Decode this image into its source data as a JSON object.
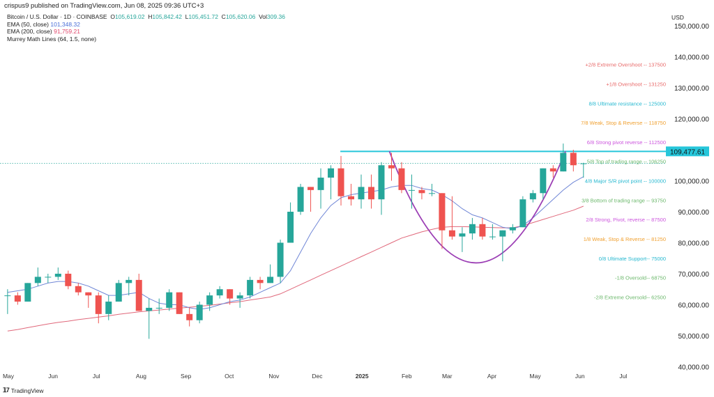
{
  "header": {
    "published": "crispus9 published on TradingView.com, Jun 08, 2025 09:36 UTC+3",
    "symbol": "Bitcoin / U.S. Dollar · 1D · COINBASE",
    "o_label": "O",
    "o": "105,619.02",
    "h_label": "H",
    "h": "105,842.42",
    "l_label": "L",
    "l": "105,451.72",
    "c_label": "C",
    "c": "105,620.06",
    "vol_label": "Vol",
    "vol": "309.36",
    "ema50_label": "EMA (50, close)",
    "ema50": "101,348.32",
    "ema200_label": "EMA (200, close)",
    "ema200": "91,759.21",
    "murrey_label": "Murrey Math Lines (64, 1.5, none)"
  },
  "footer": {
    "logo_text": "TradingView",
    "logo_mark": "17"
  },
  "colors": {
    "up": "#26a69a",
    "down": "#ef5350",
    "ema50": "#6f86d6",
    "ema200": "#e0677a",
    "resistance": "#26c6da",
    "cup": "#9c3fb5"
  },
  "chart_data": {
    "type": "candlestick",
    "currency": "USD",
    "y_unit_label": "USD",
    "ylim": [
      40000,
      150000
    ],
    "y_ticks": [
      "150,000.00",
      "140,000.00",
      "130,000.00",
      "120,000.00",
      "100,000.00",
      "90,000.00",
      "80,000.00",
      "70,000.00",
      "60,000.00",
      "50,000.00",
      "40,000.00"
    ],
    "y_tick_values": [
      150000,
      140000,
      130000,
      120000,
      100000,
      90000,
      80000,
      70000,
      60000,
      50000,
      40000
    ],
    "x_ticks": [
      {
        "label": "May",
        "date": "2024-05-01"
      },
      {
        "label": "Jun",
        "date": "2024-06-01"
      },
      {
        "label": "Jul",
        "date": "2024-07-01"
      },
      {
        "label": "Aug",
        "date": "2024-08-01"
      },
      {
        "label": "Sep",
        "date": "2024-09-01"
      },
      {
        "label": "Oct",
        "date": "2024-10-01"
      },
      {
        "label": "Nov",
        "date": "2024-11-01"
      },
      {
        "label": "Dec",
        "date": "2024-12-01"
      },
      {
        "label": "2025",
        "date": "2025-01-01",
        "bold": true
      },
      {
        "label": "Feb",
        "date": "2025-02-01"
      },
      {
        "label": "Mar",
        "date": "2025-03-01"
      },
      {
        "label": "Apr",
        "date": "2025-04-01"
      },
      {
        "label": "May",
        "date": "2025-05-01"
      },
      {
        "label": "Jun",
        "date": "2025-06-01"
      },
      {
        "label": "Jul",
        "date": "2025-07-01"
      }
    ],
    "x_range": [
      "2024-04-27",
      "2025-07-25"
    ],
    "candle_dates_start": "2024-04-29",
    "candle_interval_days": 7,
    "ohlc_thousands": [
      [
        63,
        65,
        57,
        63
      ],
      [
        63,
        64,
        60,
        61
      ],
      [
        61,
        67,
        61,
        67
      ],
      [
        67,
        72,
        66,
        69
      ],
      [
        69,
        70,
        67,
        69
      ],
      [
        69,
        72,
        68,
        70
      ],
      [
        70,
        71,
        65,
        66
      ],
      [
        66,
        67,
        63,
        64
      ],
      [
        64,
        64,
        59,
        63
      ],
      [
        63,
        64,
        54,
        57
      ],
      [
        57,
        63,
        55,
        61
      ],
      [
        61,
        68,
        61,
        67
      ],
      [
        67,
        69,
        63,
        68
      ],
      [
        68,
        70,
        58,
        58
      ],
      [
        58,
        62,
        49,
        59
      ],
      [
        59,
        62,
        57,
        59
      ],
      [
        59,
        65,
        58,
        64
      ],
      [
        64,
        64,
        57,
        57
      ],
      [
        57,
        59,
        53,
        55
      ],
      [
        55,
        61,
        54,
        60
      ],
      [
        60,
        64,
        58,
        63
      ],
      [
        63,
        66,
        62,
        65
      ],
      [
        65,
        65,
        60,
        62
      ],
      [
        62,
        64,
        59,
        63
      ],
      [
        63,
        69,
        62,
        68
      ],
      [
        68,
        69,
        65,
        67
      ],
      [
        67,
        73,
        67,
        69
      ],
      [
        69,
        81,
        67,
        80
      ],
      [
        80,
        93,
        80,
        90
      ],
      [
        90,
        99,
        89,
        98
      ],
      [
        98,
        98,
        90,
        97
      ],
      [
        97,
        104,
        91,
        101
      ],
      [
        101,
        105,
        94,
        104
      ],
      [
        104,
        108,
        92,
        95
      ],
      [
        95,
        99,
        92,
        94
      ],
      [
        94,
        102,
        91,
        98
      ],
      [
        98,
        102,
        91,
        94
      ],
      [
        94,
        106,
        89,
        105
      ],
      [
        105,
        109,
        100,
        104
      ],
      [
        104,
        106,
        96,
        97
      ],
      [
        97,
        102,
        91,
        97
      ],
      [
        97,
        98,
        94,
        96
      ],
      [
        96,
        99,
        95,
        96
      ],
      [
        96,
        96,
        78,
        84
      ],
      [
        84,
        95,
        81,
        82
      ],
      [
        82,
        85,
        77,
        83
      ],
      [
        83,
        88,
        81,
        86
      ],
      [
        86,
        88,
        81,
        82
      ],
      [
        82,
        86,
        81,
        82
      ],
      [
        82,
        84,
        74,
        84
      ],
      [
        84,
        86,
        83,
        85
      ],
      [
        85,
        95,
        85,
        94
      ],
      [
        94,
        97,
        93,
        96
      ],
      [
        96,
        104,
        94,
        104
      ],
      [
        104,
        105,
        101,
        103
      ],
      [
        103,
        112,
        103,
        109
      ],
      [
        109,
        110,
        103,
        105
      ],
      [
        105.6,
        105.8,
        101,
        105.6
      ]
    ],
    "ema50_thousands": [
      64,
      64.5,
      65,
      66,
      67,
      67.5,
      67.5,
      67,
      66,
      64.5,
      63,
      63,
      63.5,
      64,
      62,
      60.5,
      60,
      60,
      59,
      58.5,
      59,
      60,
      61,
      61.5,
      62.5,
      64,
      65.5,
      67,
      71,
      77,
      83,
      88,
      92,
      94.5,
      95.5,
      96,
      96.5,
      97,
      98,
      98.5,
      98.5,
      97.5,
      97,
      95.5,
      93.5,
      91,
      89,
      88,
      86.5,
      85,
      84.5,
      85.5,
      88,
      91,
      94,
      97,
      99.5,
      101.3
    ],
    "ema200_thousands": [
      51.5,
      52,
      52.6,
      53.2,
      53.8,
      54.3,
      54.7,
      55.2,
      55.6,
      56,
      56.4,
      56.9,
      57.3,
      57.7,
      58,
      58.3,
      58.6,
      58.9,
      59.2,
      59.5,
      59.8,
      60.2,
      60.6,
      61,
      61.5,
      62,
      62.5,
      63.5,
      65,
      66.5,
      68,
      69.5,
      71,
      72.5,
      74,
      75.5,
      77,
      78.5,
      80,
      81.5,
      82.5,
      83.5,
      84.3,
      85,
      85.2,
      85.2,
      85.1,
      85,
      84.9,
      84.8,
      84.8,
      85.5,
      86.5,
      87.5,
      88.5,
      89.5,
      90.5,
      91.8
    ],
    "last_price": 105620.06,
    "resistance": {
      "price": 109477.61,
      "label": "109,477.61",
      "from": "2024-12-17"
    },
    "cup": {
      "left": [
        "2025-01-20",
        109477.61
      ],
      "bottom": [
        "2025-03-20",
        73500
      ],
      "right": [
        "2025-05-22",
        109477.61
      ]
    },
    "murrey": [
      {
        "text": "+2/8 Extreme Overshoot --  137500",
        "price": 137500,
        "color": "#e86a6a"
      },
      {
        "text": "+1/8 Overshoot --  131250",
        "price": 131250,
        "color": "#e86a6a"
      },
      {
        "text": "8/8 Ultimate resistance --  125000",
        "price": 125000,
        "color": "#26b8d0"
      },
      {
        "text": "7/8 Weak, Stop & Reverse --  118750",
        "price": 118750,
        "color": "#f0a030"
      },
      {
        "text": "6/8 Strong pivot reverse --  112500",
        "price": 112500,
        "color": "#cc55dd"
      },
      {
        "text": "5/8 Top of trading range --  106250",
        "price": 106250,
        "color": "#6cb86c"
      },
      {
        "text": "4/8 Major S/R pivot point --  100000",
        "price": 100000,
        "color": "#26b8d0"
      },
      {
        "text": "3/8 Bottom of trading range --  93750",
        "price": 93750,
        "color": "#6cb86c"
      },
      {
        "text": "2/8 Strong, Pivot, reverse --  87500",
        "price": 87500,
        "color": "#cc55dd"
      },
      {
        "text": "1/8 Weak, Stop & Reverse --  81250",
        "price": 81250,
        "color": "#f0a030"
      },
      {
        "text": "0/8 Ultimate Support--  75000",
        "price": 75000,
        "color": "#26b8d0"
      },
      {
        "text": "-1/8 Oversold--  68750",
        "price": 68750,
        "color": "#6cb86c"
      },
      {
        "text": "-2/8 Extreme Oversold--  62500",
        "price": 62500,
        "color": "#6cb86c"
      }
    ]
  }
}
